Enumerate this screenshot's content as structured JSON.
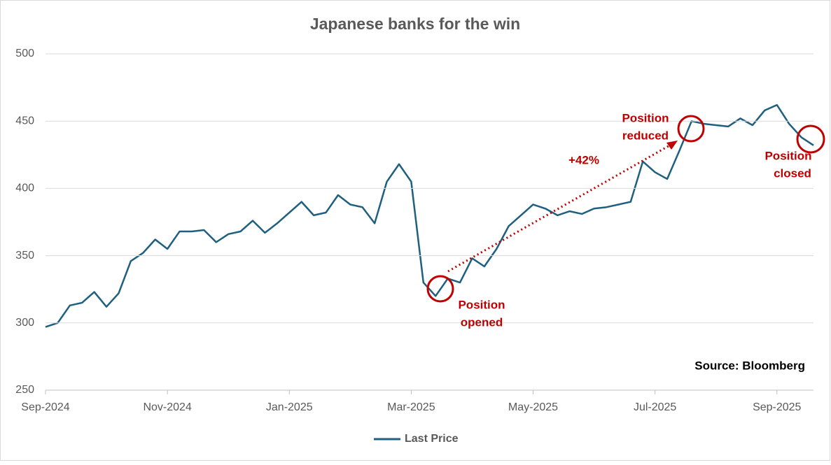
{
  "chart_data": {
    "type": "line",
    "title": "Japanese banks for the win",
    "categories": [
      "Sep-2024",
      null,
      null,
      null,
      null,
      null,
      null,
      null,
      null,
      null,
      "Nov-2024",
      null,
      null,
      null,
      null,
      null,
      null,
      null,
      null,
      null,
      "Jan-2025",
      null,
      null,
      null,
      null,
      null,
      null,
      null,
      null,
      null,
      "Mar-2025",
      null,
      null,
      null,
      null,
      null,
      null,
      null,
      null,
      null,
      "May-2025",
      null,
      null,
      null,
      null,
      null,
      null,
      null,
      null,
      null,
      "Jul-2025",
      null,
      null,
      null,
      null,
      null,
      null,
      null,
      null,
      null,
      "Sep-2025",
      null,
      null,
      null
    ],
    "series": [
      {
        "name": "Last Price",
        "color": "#1f5f7f",
        "values": [
          297,
          300,
          313,
          315,
          323,
          312,
          322,
          346,
          352,
          362,
          355,
          368,
          368,
          369,
          360,
          366,
          368,
          376,
          367,
          374,
          382,
          390,
          380,
          382,
          395,
          388,
          386,
          374,
          405,
          418,
          405,
          330,
          320,
          333,
          330,
          348,
          342,
          355,
          372,
          380,
          388,
          385,
          380,
          383,
          381,
          385,
          386,
          388,
          390,
          420,
          412,
          407,
          428,
          450,
          448,
          447,
          446,
          452,
          447,
          458,
          462,
          448,
          438,
          432
        ]
      }
    ],
    "ylim": [
      250,
      500
    ],
    "yticks": [
      250,
      300,
      350,
      400,
      450,
      500
    ],
    "grid": true,
    "legend": "bottom",
    "annotations": [
      [
        "Position",
        "opened"
      ],
      [
        "Position",
        "reduced"
      ],
      [
        "Position",
        "closed"
      ]
    ],
    "gain_label": "+42%",
    "source": "Source: Bloomberg"
  }
}
